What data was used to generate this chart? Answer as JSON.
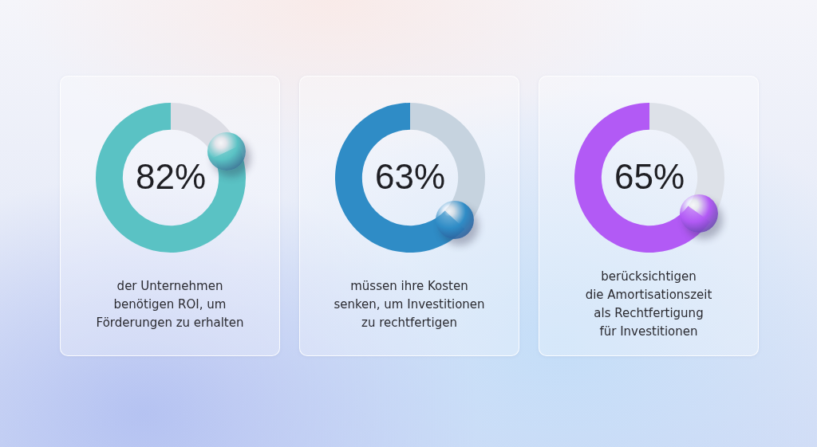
{
  "chart_data": [
    {
      "type": "donut",
      "categories": [
        null,
        null
      ],
      "values": [
        82,
        18
      ],
      "colors": [
        "#5ac2c4",
        "#dcdde5"
      ],
      "value_labels": [
        "82%",
        null
      ],
      "annotations": [
        "der Unternehmen\nbenötigen ROI, um\nFörderungen zu erhalten"
      ]
    },
    {
      "type": "donut",
      "categories": [
        null,
        null
      ],
      "values": [
        63,
        37
      ],
      "colors": [
        "#2f8cc6",
        "#c6d3df"
      ],
      "value_labels": [
        "63%",
        null
      ],
      "annotations": [
        "müssen ihre Kosten\nsenken, um Investitionen\nzu rechtfertigen"
      ]
    },
    {
      "type": "donut",
      "categories": [
        null,
        null
      ],
      "values": [
        65,
        35
      ],
      "colors": [
        "#b25af5",
        "#dde1e8"
      ],
      "value_labels": [
        "65%",
        null
      ],
      "annotations": [
        "berücksichtigen\ndie Amortisationszeit\nals Rechtfertigung\nfür Investitionen"
      ]
    }
  ]
}
